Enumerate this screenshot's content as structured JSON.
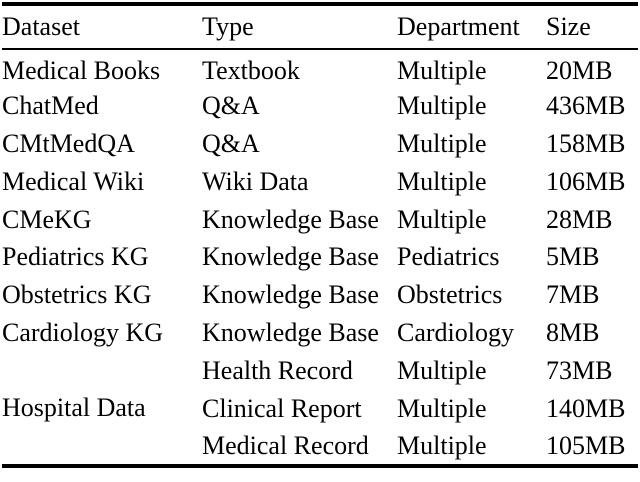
{
  "page": {
    "background_color": "#ffffff",
    "text_color": "#000000",
    "rule_color": "#000000"
  },
  "table": {
    "headers": {
      "dataset": "Dataset",
      "type": "Type",
      "department": "Department",
      "size": "Size"
    },
    "rows": [
      {
        "dataset": "Medical Books",
        "type": "Textbook",
        "department": "Multiple",
        "size": "20MB"
      },
      {
        "dataset": "ChatMed",
        "type": "Q&A",
        "department": "Multiple",
        "size": "436MB"
      },
      {
        "dataset": "CMtMedQA",
        "type": "Q&A",
        "department": "Multiple",
        "size": "158MB"
      },
      {
        "dataset": "Medical Wiki",
        "type": "Wiki Data",
        "department": "Multiple",
        "size": "106MB"
      },
      {
        "dataset": "CMeKG",
        "type": "Knowledge Base",
        "department": "Multiple",
        "size": "28MB"
      },
      {
        "dataset": "Pediatrics KG",
        "type": "Knowledge Base",
        "department": "Pediatrics",
        "size": "5MB"
      },
      {
        "dataset": "Obstetrics KG",
        "type": "Knowledge Base",
        "department": "Obstetrics",
        "size": "7MB"
      },
      {
        "dataset": "Cardiology KG",
        "type": "Knowledge Base",
        "department": "Cardiology",
        "size": "8MB"
      }
    ],
    "group": {
      "dataset": "Hospital Data",
      "entries": [
        {
          "type": "Health Record",
          "department": "Multiple",
          "size": "73MB"
        },
        {
          "type": "Clinical Report",
          "department": "Multiple",
          "size": "140MB"
        },
        {
          "type": "Medical Record",
          "department": "Multiple",
          "size": "105MB"
        }
      ]
    }
  }
}
